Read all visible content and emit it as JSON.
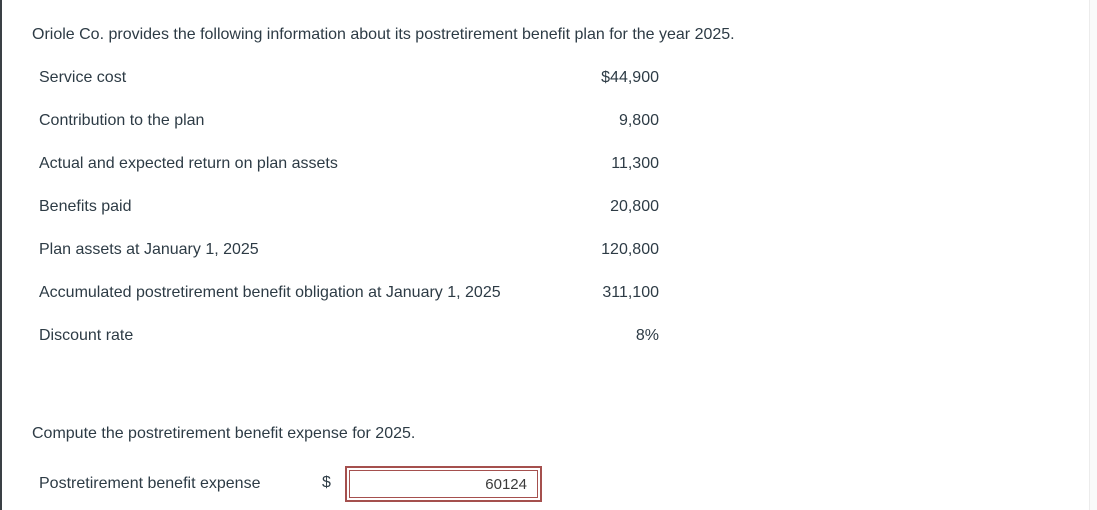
{
  "page": {
    "title": "Oriole Co. provides the following information about its postretirement benefit plan for the year 2025.",
    "question": "Compute the postretirement benefit expense for 2025."
  },
  "table": {
    "rows": [
      {
        "label": "Service cost",
        "value": "$44,900"
      },
      {
        "label": "Contribution to the plan",
        "value": "9,800"
      },
      {
        "label": "Actual and expected return on plan assets",
        "value": "11,300"
      },
      {
        "label": "Benefits paid",
        "value": "20,800"
      },
      {
        "label": "Plan assets at January 1, 2025",
        "value": "120,800"
      },
      {
        "label": "Accumulated postretirement benefit obligation at January 1, 2025",
        "value": "311,100"
      },
      {
        "label": "Discount rate",
        "value": "8%"
      }
    ]
  },
  "answer": {
    "label": "Postretirement benefit expense",
    "currency_symbol": "$",
    "input_value": "60124"
  },
  "colors": {
    "text": "#2d3b45",
    "input_border": "#a5504e"
  }
}
